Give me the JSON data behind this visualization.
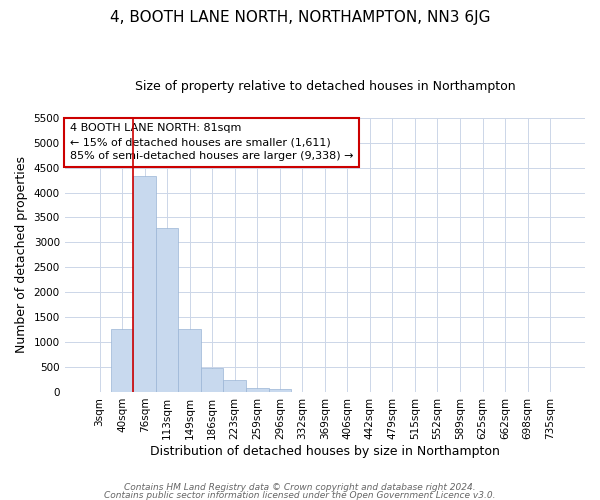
{
  "title": "4, BOOTH LANE NORTH, NORTHAMPTON, NN3 6JG",
  "subtitle": "Size of property relative to detached houses in Northampton",
  "xlabel": "Distribution of detached houses by size in Northampton",
  "ylabel": "Number of detached properties",
  "bar_labels": [
    "3sqm",
    "40sqm",
    "76sqm",
    "113sqm",
    "149sqm",
    "186sqm",
    "223sqm",
    "259sqm",
    "296sqm",
    "332sqm",
    "369sqm",
    "406sqm",
    "442sqm",
    "479sqm",
    "515sqm",
    "552sqm",
    "589sqm",
    "625sqm",
    "662sqm",
    "698sqm",
    "735sqm"
  ],
  "bar_values": [
    0,
    1270,
    4330,
    3290,
    1270,
    480,
    230,
    80,
    50,
    0,
    0,
    0,
    0,
    0,
    0,
    0,
    0,
    0,
    0,
    0,
    0
  ],
  "bar_color": "#c8d9ee",
  "bar_edge_color": "#9ab5d5",
  "vline_color": "#cc0000",
  "vline_x_index": 2,
  "ylim": [
    0,
    5500
  ],
  "yticks": [
    0,
    500,
    1000,
    1500,
    2000,
    2500,
    3000,
    3500,
    4000,
    4500,
    5000,
    5500
  ],
  "annotation_title": "4 BOOTH LANE NORTH: 81sqm",
  "annotation_line1": "← 15% of detached houses are smaller (1,611)",
  "annotation_line2": "85% of semi-detached houses are larger (9,338) →",
  "annotation_box_color": "#cc0000",
  "footer1": "Contains HM Land Registry data © Crown copyright and database right 2024.",
  "footer2": "Contains public sector information licensed under the Open Government Licence v3.0.",
  "bg_color": "#ffffff",
  "grid_color": "#ccd6e8",
  "title_fontsize": 11,
  "subtitle_fontsize": 9,
  "axis_label_fontsize": 9,
  "tick_fontsize": 7.5,
  "footer_fontsize": 6.5,
  "annotation_fontsize": 8
}
